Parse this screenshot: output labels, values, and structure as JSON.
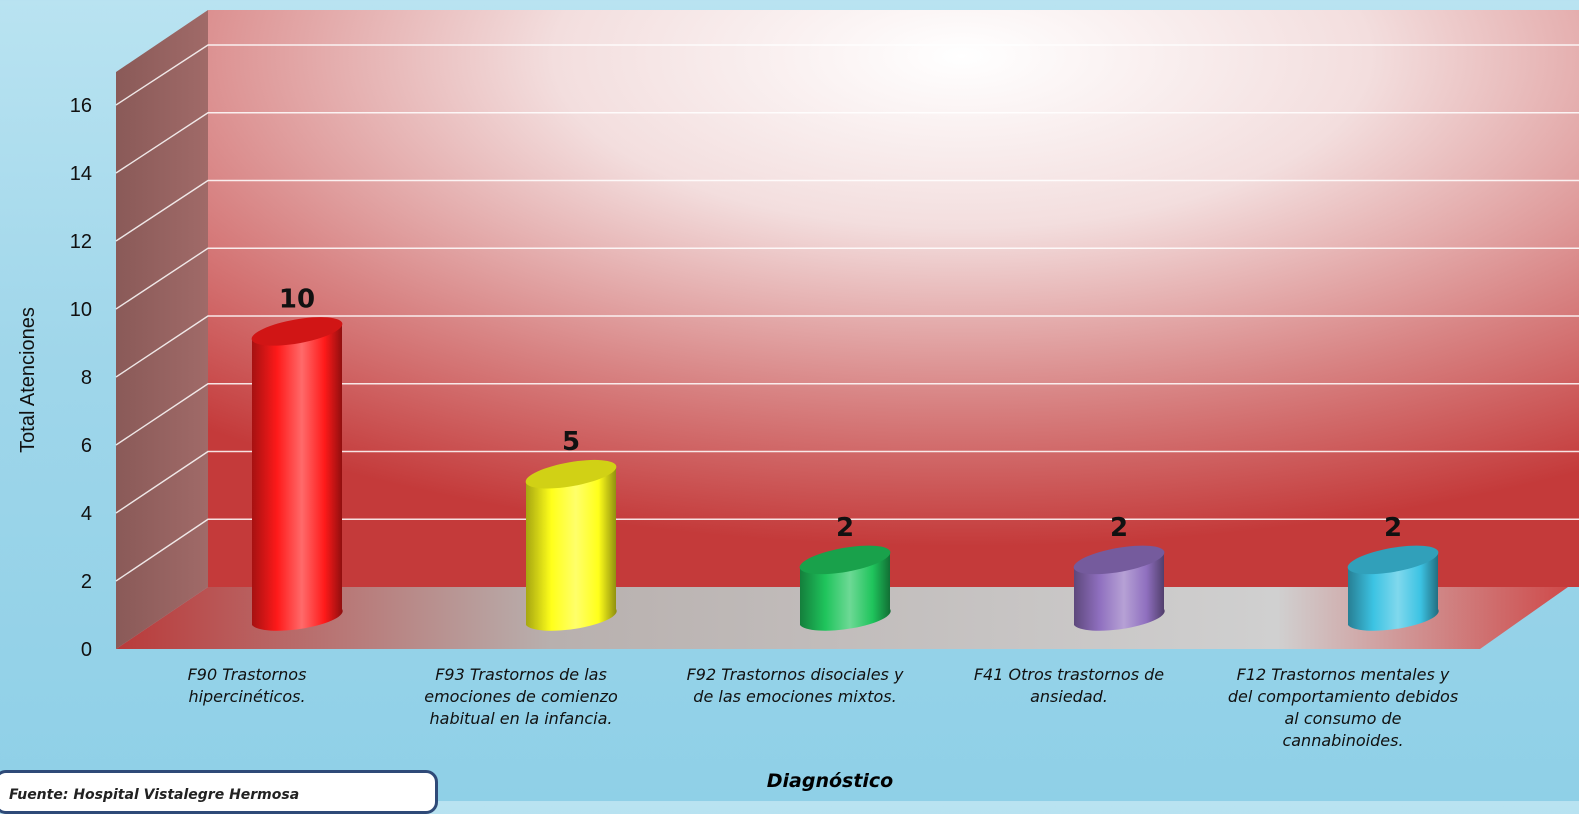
{
  "chart_data": {
    "type": "bar",
    "ylabel": "Total Atenciones",
    "xlabel": "Diagnóstico",
    "ylim": [
      0,
      16
    ],
    "yticks": [
      "0",
      "2",
      "4",
      "6",
      "8",
      "10",
      "12",
      "14",
      "16"
    ],
    "grid": true,
    "categories": [
      "F90 Trastornos hipercinéticos.",
      "F93 Trastornos de las emociones de comienzo habitual en la infancia.",
      "F92 Trastornos disociales y de las emociones mixtos.",
      "F41 Otros trastornos de ansiedad.",
      "F12 Trastornos mentales y del comportamiento debidos al consumo de cannabinoides."
    ],
    "values": [
      10,
      5,
      2,
      2,
      2
    ],
    "data_labels": [
      "10",
      "5",
      "2",
      "2",
      "2"
    ],
    "bar_colors": [
      "#ff1a1a",
      "#ffff1a",
      "#1fc45c",
      "#8f6fbf",
      "#3cc3e3"
    ]
  },
  "category_lines": [
    [
      "F90 Trastornos",
      "hipercinéticos."
    ],
    [
      "F93 Trastornos de las",
      "emociones de comienzo",
      "habitual en la infancia."
    ],
    [
      "F92 Trastornos disociales y",
      "de las emociones mixtos."
    ],
    [
      "F41 Otros trastornos de",
      "ansiedad."
    ],
    [
      "F12 Trastornos mentales y",
      "del comportamiento debidos",
      "al consumo de",
      "cannabinoides."
    ]
  ],
  "source_text": "Fuente: Hospital Vistalegre Hermosa"
}
